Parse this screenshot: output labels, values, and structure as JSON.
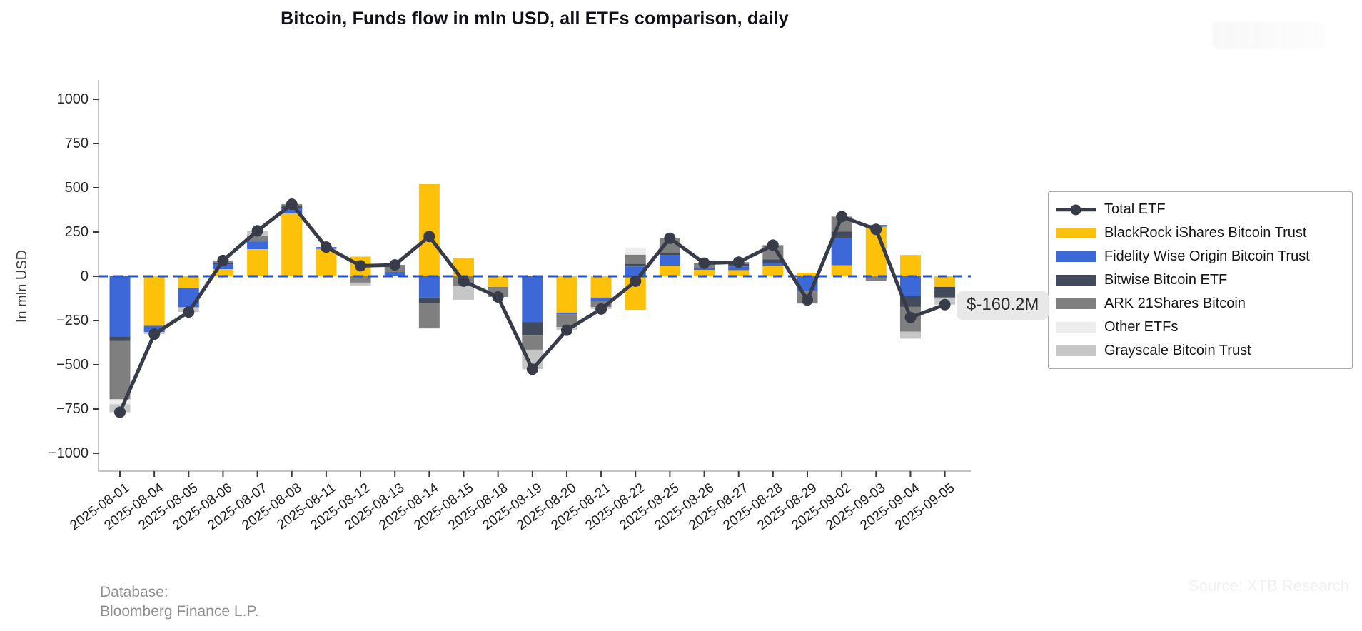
{
  "title": "Bitcoin, Funds flow in mln USD, all ETFs comparison, daily",
  "y_axis": {
    "label": "In mln USD",
    "tick_values": [
      1000,
      750,
      500,
      250,
      0,
      -250,
      -500,
      -750,
      -1000
    ],
    "tick_labels": [
      "1000",
      "750",
      "500",
      "250",
      "0",
      "−250",
      "−500",
      "−750",
      "−1000"
    ]
  },
  "annotation": {
    "text": "$-160.2M"
  },
  "footer": {
    "line1": "Database:",
    "line2": "Bloomberg Finance L.P."
  },
  "watermark": {
    "source_text": "Source: XTB Research"
  },
  "colors": {
    "total_line": "#373c48",
    "zero_dash": "#2353ce",
    "spine": "#c5c5c5",
    "tick_mark": "#3b3b3b",
    "annotation_bg": "#e8e8e8"
  },
  "legend": {
    "items": [
      {
        "id": "total-etf",
        "label": "Total ETF",
        "type": "line",
        "color": "#373c48"
      },
      {
        "id": "blackrock-ishares-bitcoin-trust",
        "label": "BlackRock iShares Bitcoin Trust",
        "type": "swatch",
        "color": "#fcc108"
      },
      {
        "id": "fidelity-wise-origin-bitcoin-trust",
        "label": "Fidelity Wise Origin Bitcoin Trust",
        "type": "swatch",
        "color": "#3d68d8"
      },
      {
        "id": "bitwise-bitcoin-etf",
        "label": "Bitwise Bitcoin ETF",
        "type": "swatch",
        "color": "#414b5c"
      },
      {
        "id": "ark-21shares-bitcoin",
        "label": "ARK 21Shares Bitcoin",
        "type": "swatch",
        "color": "#7f7f7f"
      },
      {
        "id": "other-etfs",
        "label": "Other ETFs",
        "type": "swatch",
        "color": "#ededed"
      },
      {
        "id": "grayscale-bitcoin-trust",
        "label": "Grayscale Bitcoin Trust",
        "type": "swatch",
        "color": "#c6c6c6"
      }
    ]
  },
  "chart_data": {
    "type": "bar",
    "stacked": true,
    "title": "Bitcoin, Funds flow in mln USD, all ETFs comparison, daily",
    "xlabel": "",
    "ylabel": "In mln USD",
    "ylim": [
      -1100,
      1100
    ],
    "grid": false,
    "legend_position": "right",
    "categories": [
      "2025-08-01",
      "2025-08-04",
      "2025-08-05",
      "2025-08-06",
      "2025-08-07",
      "2025-08-08",
      "2025-08-11",
      "2025-08-12",
      "2025-08-13",
      "2025-08-14",
      "2025-08-15",
      "2025-08-18",
      "2025-08-19",
      "2025-08-20",
      "2025-08-21",
      "2025-08-22",
      "2025-08-25",
      "2025-08-26",
      "2025-08-27",
      "2025-08-28",
      "2025-08-29",
      "2025-09-02",
      "2025-09-03",
      "2025-09-04",
      "2025-09-05"
    ],
    "series": [
      {
        "name": "BlackRock iShares Bitcoin Trust",
        "color": "#fcc108",
        "values": [
          0,
          -280,
          -65,
          40,
          153,
          355,
          155,
          111,
          0,
          520,
          105,
          -60,
          0,
          -205,
          -120,
          -190,
          60,
          36,
          35,
          60,
          20,
          62,
          280,
          120,
          -60
        ]
      },
      {
        "name": "Fidelity Wise Origin Bitcoin Trust",
        "color": "#3d68d8",
        "values": [
          -340,
          -35,
          -110,
          28,
          44,
          30,
          10,
          0,
          24,
          -120,
          0,
          0,
          -260,
          -10,
          -18,
          55,
          60,
          10,
          20,
          16,
          -85,
          155,
          10,
          -113,
          0
        ]
      },
      {
        "name": "Bitwise Bitcoin ETF",
        "color": "#414b5c",
        "values": [
          -25,
          0,
          0,
          10,
          0,
          10,
          0,
          0,
          0,
          -30,
          0,
          0,
          -75,
          0,
          0,
          15,
          10,
          0,
          15,
          20,
          0,
          35,
          0,
          -60,
          -60
        ]
      },
      {
        "name": "ARK 21Shares Bitcoin",
        "color": "#7f7f7f",
        "values": [
          -330,
          0,
          0,
          11,
          32,
          12,
          0,
          -36,
          40,
          -145,
          -55,
          -57,
          -80,
          -72,
          -36,
          52,
          85,
          28,
          10,
          80,
          -69,
          85,
          -25,
          -140,
          0
        ]
      },
      {
        "name": "Other ETFs",
        "color": "#ededed",
        "values": [
          -28,
          0,
          0,
          0,
          0,
          0,
          0,
          0,
          0,
          0,
          0,
          0,
          0,
          0,
          0,
          40,
          0,
          0,
          0,
          0,
          0,
          0,
          0,
          0,
          0
        ]
      },
      {
        "name": "Grayscale Bitcoin Trust",
        "color": "#c6c6c6",
        "values": [
          -45,
          -12,
          -27,
          0,
          28,
          0,
          0,
          -16,
          0,
          0,
          -78,
          0,
          -110,
          -18,
          -11,
          0,
          0,
          0,
          0,
          0,
          0,
          0,
          0,
          -40,
          -40
        ]
      }
    ],
    "line_series": {
      "name": "Total ETF",
      "color": "#373c48",
      "values": [
        -768,
        -327,
        -202,
        89,
        257,
        407,
        165,
        59,
        64,
        225,
        -28,
        -117,
        -525,
        -305,
        -185,
        -28,
        215,
        74,
        80,
        176,
        -134,
        337,
        265,
        -233,
        -160.2
      ]
    },
    "last_point_label": "$-160.2M"
  }
}
